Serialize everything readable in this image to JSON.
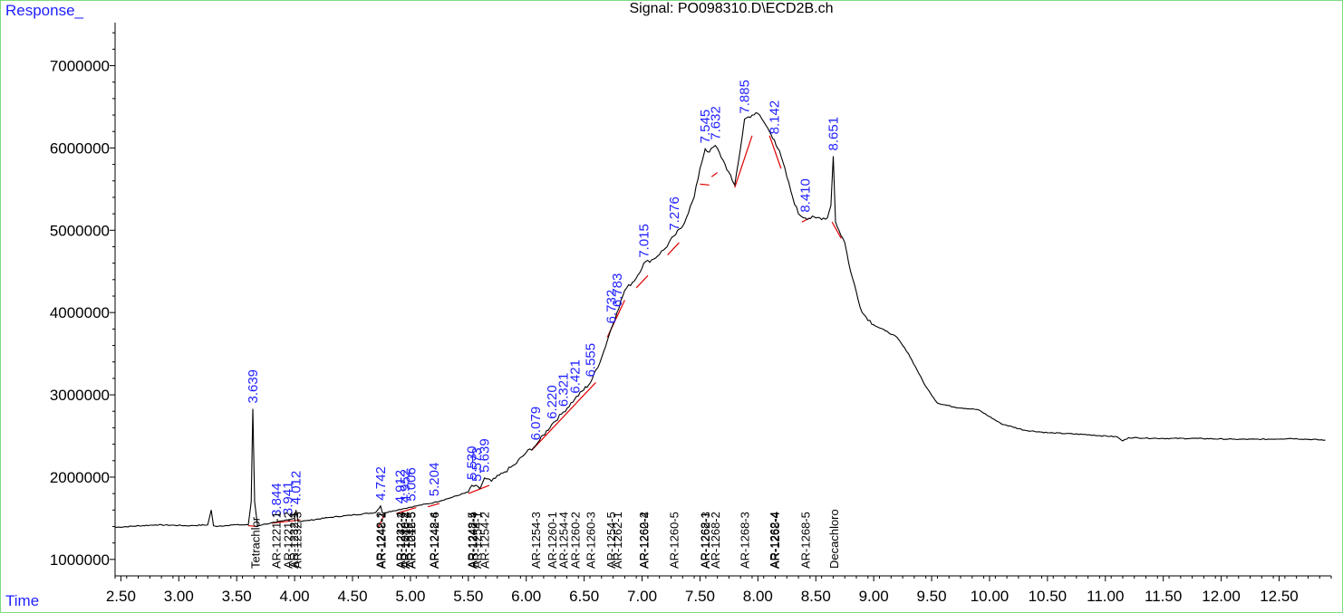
{
  "header": {
    "title": "Signal: PO098310.D\\ECD2B.ch",
    "response_label": "Response_",
    "time_label": "Time"
  },
  "colors": {
    "trace": "#000000",
    "peak_label": "#1f1fff",
    "baseline": "#e00000",
    "frame": "#7fdc7f",
    "axis_text": "#000000"
  },
  "chart_data": {
    "type": "line",
    "title": "Signal: PO098310.D\\ECD2B.ch",
    "xlabel": "Time",
    "ylabel": "Response_",
    "xlim": [
      2.45,
      12.95
    ],
    "ylim": [
      800000,
      7600000
    ],
    "x_ticks": [
      "2.50",
      "3.00",
      "3.50",
      "4.00",
      "4.50",
      "5.00",
      "5.50",
      "6.00",
      "6.50",
      "7.00",
      "7.50",
      "8.00",
      "8.50",
      "9.00",
      "9.50",
      "10.00",
      "10.50",
      "11.00",
      "11.50",
      "12.00",
      "12.50"
    ],
    "y_ticks": [
      "1000000",
      "2000000",
      "3000000",
      "4000000",
      "5000000",
      "6000000",
      "7000000"
    ],
    "grid": false,
    "legend": "none",
    "series": [
      {
        "x": [
          2.45,
          2.8,
          3.1,
          3.25,
          3.28,
          3.3,
          3.33,
          3.45,
          3.6,
          3.625,
          3.639,
          3.655,
          3.68,
          3.75,
          3.84,
          3.9,
          4.0,
          4.012,
          4.03,
          4.1,
          4.3,
          4.5,
          4.7,
          4.742,
          4.76,
          4.85,
          4.95,
          5.05,
          5.2,
          5.35,
          5.5,
          5.53,
          5.6,
          5.639,
          5.7,
          5.8,
          5.9,
          6.0,
          6.079,
          6.1,
          6.22,
          6.32,
          6.42,
          6.555,
          6.65,
          6.732,
          6.783,
          6.85,
          6.95,
          7.015,
          7.1,
          7.2,
          7.276,
          7.35,
          7.45,
          7.5,
          7.545,
          7.58,
          7.632,
          7.7,
          7.78,
          7.8,
          7.85,
          7.885,
          7.95,
          8.0,
          8.05,
          8.1,
          8.142,
          8.2,
          8.3,
          8.35,
          8.41,
          8.5,
          8.6,
          8.63,
          8.651,
          8.67,
          8.7,
          8.75,
          8.8,
          8.9,
          9.0,
          9.1,
          9.2,
          9.3,
          9.45,
          9.55,
          9.7,
          9.9,
          10.1,
          10.3,
          10.5,
          10.8,
          11.1,
          11.15,
          11.2,
          11.5,
          11.8,
          12.1,
          12.4,
          12.6,
          12.9
        ],
        "y": [
          1390000,
          1420000,
          1410000,
          1420000,
          1600000,
          1410000,
          1400000,
          1420000,
          1420000,
          1700000,
          2830000,
          1700000,
          1410000,
          1430000,
          1450000,
          1470000,
          1500000,
          1600000,
          1460000,
          1470000,
          1510000,
          1540000,
          1570000,
          1650000,
          1560000,
          1590000,
          1620000,
          1650000,
          1690000,
          1750000,
          1820000,
          1900000,
          1860000,
          1990000,
          1950000,
          2050000,
          2150000,
          2300000,
          2380000,
          2420000,
          2640000,
          2790000,
          2950000,
          3150000,
          3450000,
          3800000,
          4000000,
          4270000,
          4420000,
          4600000,
          4650000,
          4780000,
          4930000,
          5050000,
          5400000,
          5750000,
          5990000,
          5950000,
          6030000,
          5850000,
          5600000,
          5550000,
          6000000,
          6350000,
          6400000,
          6420000,
          6320000,
          6200000,
          6100000,
          5900000,
          5400000,
          5200000,
          5150000,
          5150000,
          5150000,
          5300000,
          5900000,
          5100000,
          5000000,
          4850000,
          4500000,
          4000000,
          3850000,
          3780000,
          3700000,
          3500000,
          3100000,
          2900000,
          2850000,
          2820000,
          2650000,
          2570000,
          2540000,
          2520000,
          2490000,
          2440000,
          2480000,
          2470000,
          2470000,
          2460000,
          2460000,
          2470000,
          2450000
        ]
      }
    ],
    "peak_labels": [
      {
        "rt": "3.639",
        "x": 3.639,
        "y": 2830000
      },
      {
        "rt": "3.844",
        "x": 3.844,
        "y": 1450000
      },
      {
        "rt": "3.941",
        "x": 3.941,
        "y": 1470000
      },
      {
        "rt": "4.012",
        "x": 4.012,
        "y": 1600000
      },
      {
        "rt": "4.742",
        "x": 4.742,
        "y": 1650000
      },
      {
        "rt": "4.912",
        "x": 4.912,
        "y": 1610000
      },
      {
        "rt": "4.952",
        "x": 4.952,
        "y": 1620000
      },
      {
        "rt": "5.006",
        "x": 5.006,
        "y": 1640000
      },
      {
        "rt": "5.204",
        "x": 5.204,
        "y": 1700000
      },
      {
        "rt": "5.530",
        "x": 5.53,
        "y": 1900000
      },
      {
        "rt": "5.573",
        "x": 5.573,
        "y": 1880000
      },
      {
        "rt": "5.639",
        "x": 5.639,
        "y": 1990000
      },
      {
        "rt": "6.079",
        "x": 6.079,
        "y": 2380000
      },
      {
        "rt": "6.220",
        "x": 6.22,
        "y": 2640000
      },
      {
        "rt": "6.321",
        "x": 6.321,
        "y": 2790000
      },
      {
        "rt": "6.421",
        "x": 6.421,
        "y": 2950000
      },
      {
        "rt": "6.555",
        "x": 6.555,
        "y": 3150000
      },
      {
        "rt": "6.732",
        "x": 6.732,
        "y": 3800000
      },
      {
        "rt": "6.783",
        "x": 6.783,
        "y": 4000000
      },
      {
        "rt": "7.015",
        "x": 7.015,
        "y": 4600000
      },
      {
        "rt": "7.276",
        "x": 7.276,
        "y": 4930000
      },
      {
        "rt": "7.545",
        "x": 7.545,
        "y": 5990000
      },
      {
        "rt": "7.632",
        "x": 7.632,
        "y": 6030000
      },
      {
        "rt": "7.885",
        "x": 7.885,
        "y": 6350000
      },
      {
        "rt": "8.142",
        "x": 8.142,
        "y": 6100000
      },
      {
        "rt": "8.410",
        "x": 8.41,
        "y": 5150000
      },
      {
        "rt": "8.651",
        "x": 8.651,
        "y": 5900000
      }
    ],
    "compound_labels": [
      {
        "text": "Tetrachlor",
        "x": 3.66
      },
      {
        "text": "AR-1221-1",
        "x": 3.84
      },
      {
        "text": "AR-1221-2",
        "x": 3.94
      },
      {
        "text": "AR-1232-1",
        "x": 3.99
      },
      {
        "text": "AR-1232-3",
        "x": 4.02
      },
      {
        "text": "AR-1242-2",
        "x": 4.74
      },
      {
        "text": "AR-1248-1",
        "x": 4.745
      },
      {
        "text": "AR-1232-4",
        "x": 4.91
      },
      {
        "text": "AR-1242-3",
        "x": 4.915
      },
      {
        "text": "AR-1248-2",
        "x": 4.95
      },
      {
        "text": "AR-1016-4",
        "x": 4.955
      },
      {
        "text": "AR-1242-5",
        "x": 5.0
      },
      {
        "text": "AR-1016-5",
        "x": 5.005
      },
      {
        "text": "AR-1248-4",
        "x": 5.2
      },
      {
        "text": "AR-1242-6",
        "x": 5.205
      },
      {
        "text": "AR-1248-5",
        "x": 5.53
      },
      {
        "text": "AR-1242-4",
        "x": 5.535
      },
      {
        "text": "AR-1254-1",
        "x": 5.57
      },
      {
        "text": "AR-1254-2",
        "x": 5.64
      },
      {
        "text": "AR-1254-3",
        "x": 6.08
      },
      {
        "text": "AR-1260-1",
        "x": 6.22
      },
      {
        "text": "AR-1254-4",
        "x": 6.32
      },
      {
        "text": "AR-1260-2",
        "x": 6.42
      },
      {
        "text": "AR-1260-3",
        "x": 6.555
      },
      {
        "text": "AR-1254-5",
        "x": 6.73
      },
      {
        "text": "AR-1262-1",
        "x": 6.785
      },
      {
        "text": "AR-1262-2",
        "x": 7.01
      },
      {
        "text": "AR-1260-4",
        "x": 7.015
      },
      {
        "text": "AR-1260-5",
        "x": 7.275
      },
      {
        "text": "AR-1268-1",
        "x": 7.54
      },
      {
        "text": "AR-1262-3",
        "x": 7.545
      },
      {
        "text": "AR-1268-2",
        "x": 7.63
      },
      {
        "text": "AR-1268-3",
        "x": 7.885
      },
      {
        "text": "AR-1262-4",
        "x": 8.14
      },
      {
        "text": "AR-1268-4",
        "x": 8.145
      },
      {
        "text": "AR-1268-5",
        "x": 8.41
      },
      {
        "text": "Decachloro",
        "x": 8.655
      }
    ],
    "baseline_segments": [
      {
        "x": [
          3.6,
          3.68
        ],
        "y": [
          1410000,
          1400000
        ]
      },
      {
        "x": [
          3.8,
          4.05
        ],
        "y": [
          1440000,
          1480000
        ]
      },
      {
        "x": [
          4.72,
          4.78
        ],
        "y": [
          1380000,
          1560000
        ]
      },
      {
        "x": [
          4.88,
          5.05
        ],
        "y": [
          1560000,
          1630000
        ]
      },
      {
        "x": [
          5.15,
          5.25
        ],
        "y": [
          1640000,
          1680000
        ]
      },
      {
        "x": [
          5.5,
          5.68
        ],
        "y": [
          1800000,
          1900000
        ]
      },
      {
        "x": [
          6.05,
          6.6
        ],
        "y": [
          2330000,
          3150000
        ]
      },
      {
        "x": [
          6.7,
          6.85
        ],
        "y": [
          3700000,
          4150000
        ]
      },
      {
        "x": [
          6.95,
          7.05
        ],
        "y": [
          4300000,
          4450000
        ]
      },
      {
        "x": [
          7.22,
          7.32
        ],
        "y": [
          4700000,
          4850000
        ]
      },
      {
        "x": [
          7.5,
          7.58
        ],
        "y": [
          5560000,
          5550000
        ]
      },
      {
        "x": [
          7.6,
          7.65
        ],
        "y": [
          5650000,
          5700000
        ]
      },
      {
        "x": [
          7.8,
          7.95
        ],
        "y": [
          5520000,
          6150000
        ]
      },
      {
        "x": [
          8.1,
          8.2
        ],
        "y": [
          6150000,
          5750000
        ]
      },
      {
        "x": [
          8.38,
          8.45
        ],
        "y": [
          5100000,
          5150000
        ]
      },
      {
        "x": [
          8.64,
          8.72
        ],
        "y": [
          5100000,
          4900000
        ]
      }
    ]
  }
}
